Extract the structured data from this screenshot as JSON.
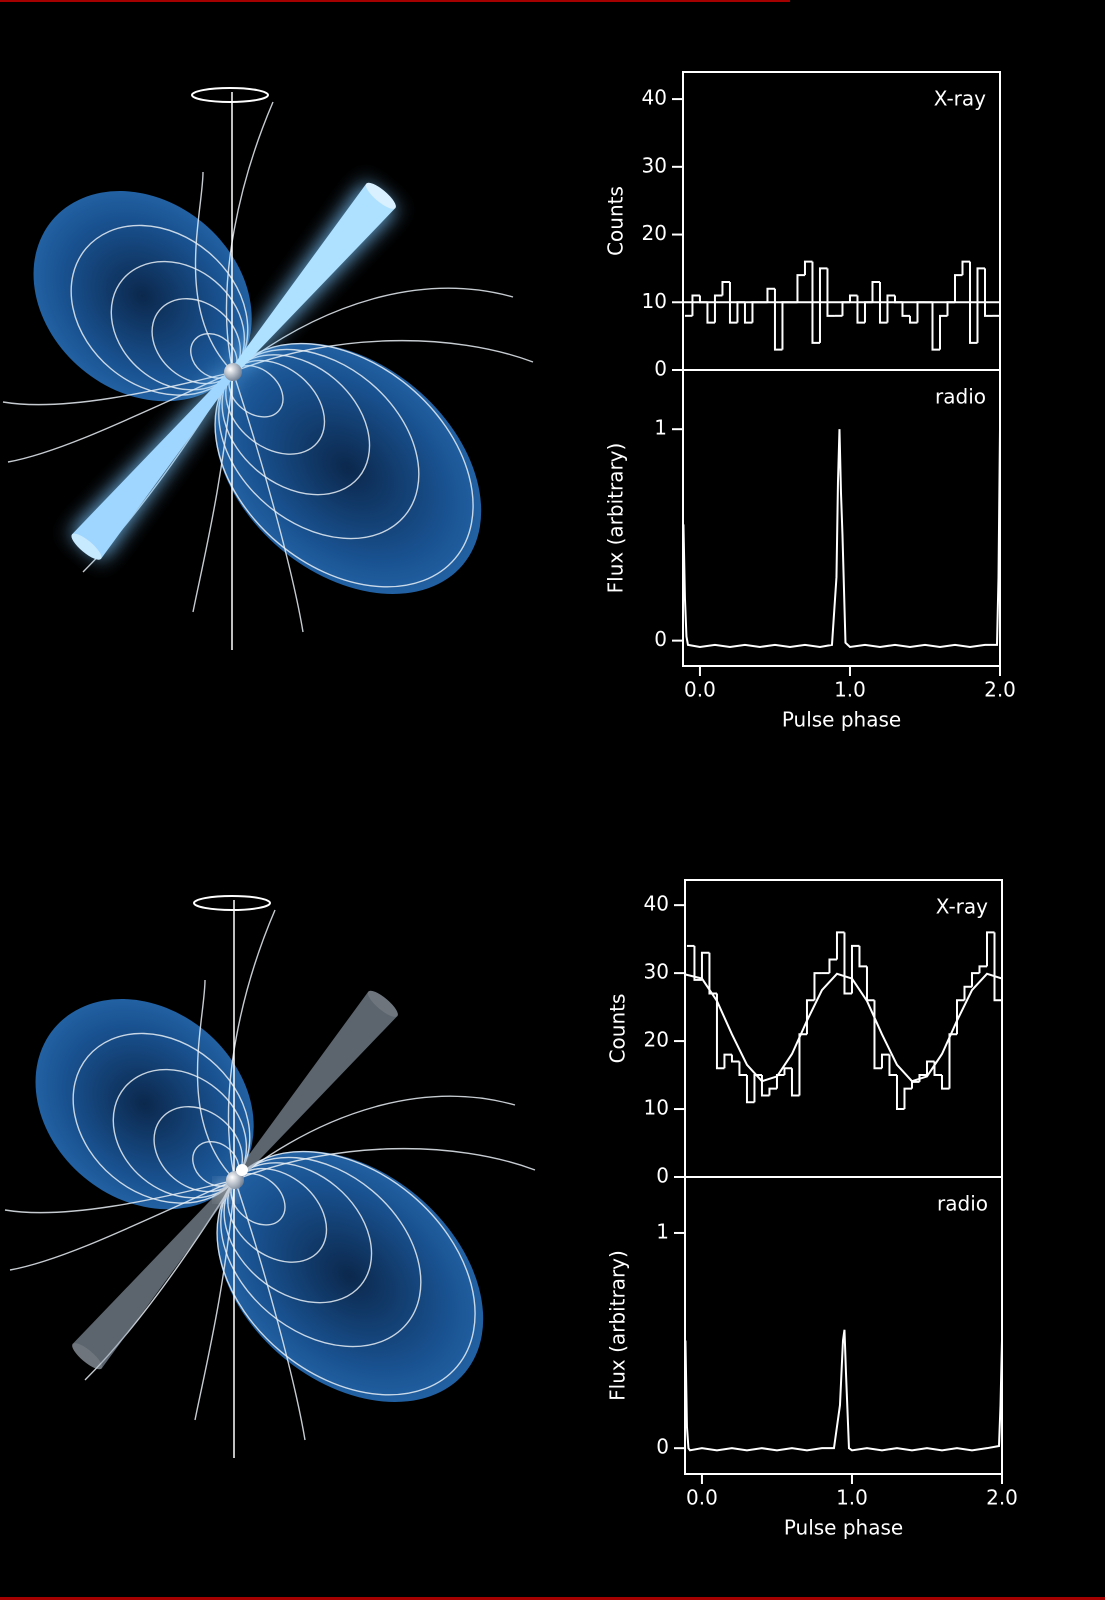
{
  "chart_data": [
    {
      "type": "histogram",
      "label": "X-ray",
      "ylabel": "Counts",
      "xlim": [
        -0.113,
        2.0
      ],
      "ylim": [
        0,
        44
      ],
      "yticks": [
        0,
        10,
        20,
        30,
        40
      ],
      "bins": [
        -0.1,
        -0.05,
        0,
        0.05,
        0.1,
        0.15,
        0.2,
        0.25,
        0.3,
        0.35,
        0.4,
        0.45,
        0.5,
        0.55,
        0.6,
        0.65,
        0.7,
        0.75,
        0.8,
        0.85,
        0.9,
        0.95,
        1,
        1.05,
        1.1,
        1.15,
        1.2,
        1.25,
        1.3,
        1.35,
        1.4,
        1.45,
        1.5,
        1.55,
        1.6,
        1.65,
        1.7,
        1.75,
        1.8,
        1.85,
        1.9,
        1.95,
        2
      ],
      "values": [
        8,
        11,
        10,
        7,
        11,
        13,
        7,
        10,
        7,
        10,
        10,
        12,
        3,
        10,
        10,
        14,
        16,
        4,
        15,
        8,
        8,
        10,
        11,
        7,
        10,
        13,
        7,
        11,
        10,
        8,
        7,
        10,
        10,
        3,
        8,
        10,
        14,
        16,
        4,
        15,
        8,
        8
      ],
      "fit": {
        "x": [
          -0.113,
          2.0
        ],
        "values": [
          10,
          10
        ]
      },
      "color": "#ffffff"
    },
    {
      "type": "line",
      "label": "radio",
      "ylabel": "Flux (arbitrary)",
      "xlabel": "Pulse phase",
      "xlim": [
        -0.113,
        2.0
      ],
      "ylim": [
        -0.12,
        1.28
      ],
      "yticks": [
        0,
        1
      ],
      "xticks": [
        {
          "value": 0,
          "label": "0.0"
        },
        {
          "value": 1,
          "label": "1.0"
        },
        {
          "value": 2,
          "label": "2.0"
        }
      ],
      "x": [
        -0.11,
        -0.1,
        -0.09,
        -0.08,
        0,
        0.1,
        0.2,
        0.3,
        0.4,
        0.5,
        0.6,
        0.7,
        0.8,
        0.88,
        0.91,
        0.92,
        0.93,
        0.94,
        0.95,
        0.97,
        1,
        1.1,
        1.2,
        1.3,
        1.4,
        1.5,
        1.6,
        1.7,
        1.8,
        1.9,
        1.98,
        1.99,
        2
      ],
      "values": [
        0.55,
        0.2,
        0.02,
        -0.02,
        -0.03,
        -0.02,
        -0.03,
        -0.02,
        -0.03,
        -0.02,
        -0.03,
        -0.02,
        -0.03,
        -0.02,
        0.3,
        0.75,
        1.0,
        0.7,
        0.5,
        -0.01,
        -0.03,
        -0.02,
        -0.03,
        -0.02,
        -0.03,
        -0.02,
        -0.03,
        -0.02,
        -0.03,
        -0.02,
        -0.02,
        0.3,
        1.0
      ],
      "color": "#ffffff"
    },
    {
      "type": "histogram",
      "label": "X-ray",
      "ylabel": "Counts",
      "xlim": [
        -0.113,
        2.0
      ],
      "ylim": [
        0,
        43.7
      ],
      "yticks": [
        0,
        10,
        20,
        30,
        40
      ],
      "bins": [
        -0.1,
        -0.05,
        0,
        0.05,
        0.1,
        0.15,
        0.2,
        0.25,
        0.3,
        0.35,
        0.4,
        0.45,
        0.5,
        0.55,
        0.6,
        0.65,
        0.7,
        0.75,
        0.8,
        0.85,
        0.9,
        0.95,
        1,
        1.05,
        1.1,
        1.15,
        1.2,
        1.25,
        1.3,
        1.35,
        1.4,
        1.45,
        1.5,
        1.55,
        1.6,
        1.65,
        1.7,
        1.75,
        1.8,
        1.85,
        1.9,
        1.95,
        2
      ],
      "values": [
        34,
        29,
        33,
        27,
        16,
        18,
        17,
        15,
        11,
        15,
        12,
        13,
        15,
        16,
        12,
        21,
        26,
        30,
        30,
        32,
        36,
        27,
        34,
        31,
        26,
        16,
        18,
        15,
        10,
        13,
        14,
        15,
        17,
        15,
        13,
        21,
        26,
        28,
        30,
        31,
        36,
        26
      ],
      "fit": {
        "x": [
          -0.11,
          0,
          0.1,
          0.2,
          0.3,
          0.4,
          0.5,
          0.6,
          0.7,
          0.8,
          0.9,
          1,
          1.1,
          1.2,
          1.3,
          1.4,
          1.5,
          1.6,
          1.7,
          1.8,
          1.9,
          2
        ],
        "values": [
          29.8,
          29.2,
          25.9,
          21.0,
          16.5,
          14.1,
          14.8,
          18.1,
          23.0,
          27.5,
          29.9,
          29.2,
          25.9,
          21.0,
          16.5,
          14.1,
          14.8,
          18.1,
          23.0,
          27.5,
          29.9,
          29.2
        ]
      },
      "color": "#ffffff"
    },
    {
      "type": "line",
      "label": "radio",
      "ylabel": "Flux (arbitrary)",
      "xlabel": "Pulse phase",
      "xlim": [
        -0.113,
        2.0
      ],
      "ylim": [
        -0.12,
        1.26
      ],
      "yticks": [
        0,
        1
      ],
      "xticks": [
        {
          "value": 0,
          "label": "0.0"
        },
        {
          "value": 1,
          "label": "1.0"
        },
        {
          "value": 2,
          "label": "2.0"
        }
      ],
      "x": [
        -0.11,
        -0.1,
        -0.09,
        -0.08,
        0,
        0.1,
        0.2,
        0.3,
        0.4,
        0.5,
        0.6,
        0.7,
        0.8,
        0.88,
        0.92,
        0.94,
        0.95,
        0.96,
        0.98,
        1,
        1.1,
        1.2,
        1.3,
        1.4,
        1.5,
        1.6,
        1.7,
        1.8,
        1.9,
        1.98,
        1.99,
        2
      ],
      "values": [
        0.5,
        0.1,
        0.0,
        -0.01,
        0,
        -0.01,
        0,
        -0.01,
        0,
        -0.01,
        0,
        -0.01,
        0,
        0.0,
        0.2,
        0.5,
        0.55,
        0.35,
        0.0,
        -0.01,
        0,
        -0.01,
        0,
        -0.01,
        0,
        -0.01,
        0,
        -0.01,
        0,
        0.01,
        0.2,
        0.5
      ],
      "color": "#ffffff"
    }
  ]
}
